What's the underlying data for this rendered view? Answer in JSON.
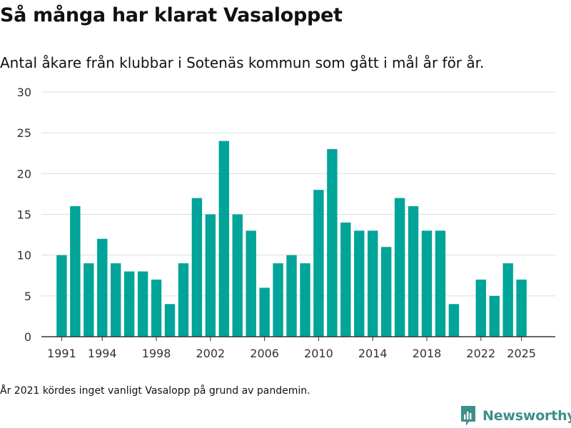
{
  "title": "Så många har klarat Vasaloppet",
  "subtitle": "Antal åkare från klubbar i Sotenäs kommun som gått i mål år för år.",
  "footnote": "År 2021 kördes inget vanligt Vasalopp på grund av pandemin.",
  "brand": {
    "name": "Newsworthy",
    "logo_icon": "newsworthy-chart-icon",
    "color": "#3d8f8a"
  },
  "colors": {
    "bar": "#00a499",
    "grid": "#dddddd",
    "axis": "#333333",
    "text": "#333333"
  },
  "chart_data": {
    "type": "bar",
    "title": "Så många har klarat Vasaloppet",
    "xlabel": "",
    "ylabel": "",
    "ylim": [
      0,
      30
    ],
    "yticks": [
      0,
      5,
      10,
      15,
      20,
      25,
      30
    ],
    "xlim": [
      1989.5,
      2027.5
    ],
    "xticks": [
      1991,
      1994,
      1998,
      2002,
      2006,
      2010,
      2014,
      2018,
      2022,
      2025
    ],
    "grid": true,
    "categories": [
      1991,
      1992,
      1993,
      1994,
      1995,
      1996,
      1997,
      1998,
      1999,
      2000,
      2001,
      2002,
      2003,
      2004,
      2005,
      2006,
      2007,
      2008,
      2009,
      2010,
      2011,
      2012,
      2013,
      2014,
      2015,
      2016,
      2017,
      2018,
      2019,
      2020,
      2022,
      2023,
      2024,
      2025
    ],
    "values": [
      10,
      16,
      9,
      12,
      9,
      8,
      8,
      7,
      4,
      9,
      17,
      15,
      24,
      15,
      13,
      6,
      9,
      10,
      9,
      18,
      23,
      14,
      13,
      13,
      11,
      17,
      16,
      13,
      13,
      4,
      7,
      5,
      9,
      7
    ]
  }
}
